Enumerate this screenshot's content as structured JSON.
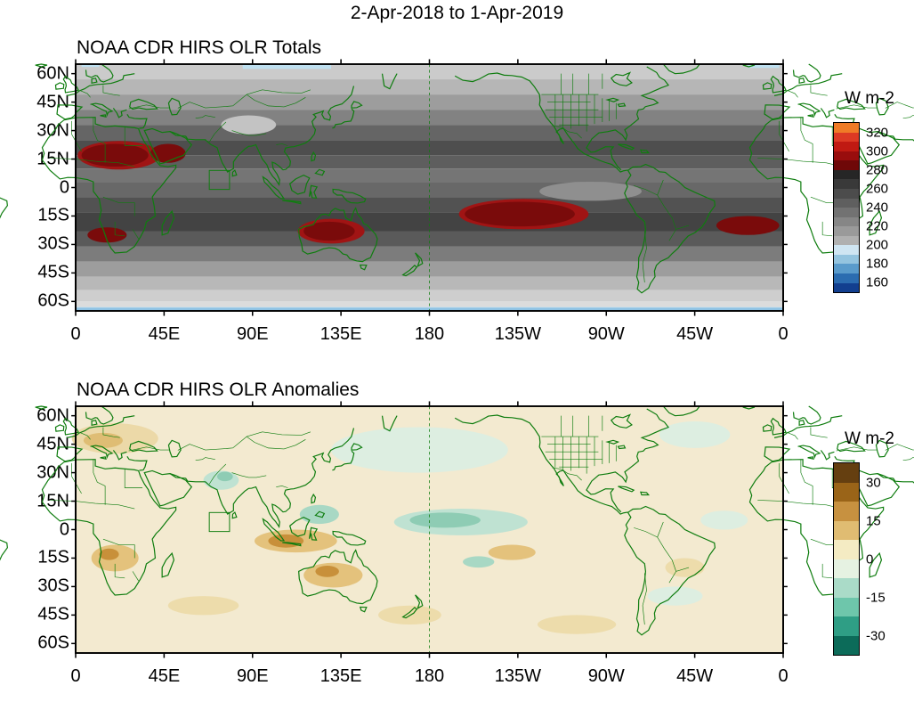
{
  "header": {
    "title": "2-Apr-2018 to 1-Apr-2019"
  },
  "panels": [
    {
      "title": "NOAA CDR HIRS OLR Totals",
      "colorbar": {
        "title": "W m-2",
        "labels": [
          "320",
          "300",
          "280",
          "260",
          "240",
          "220",
          "200",
          "180",
          "160"
        ],
        "segments": [
          "#ef7b27",
          "#dc3a24",
          "#c01a12",
          "#990d0d",
          "#6f0808",
          "#262626",
          "#393939",
          "#4c4c4c",
          "#5f5f5f",
          "#727272",
          "#868686",
          "#9a9a9a",
          "#b0b0b0",
          "#cfe5f2",
          "#94c4df",
          "#5a9bcb",
          "#2b6cb0",
          "#123f8f"
        ]
      }
    },
    {
      "title": "NOAA CDR HIRS OLR Anomalies",
      "colorbar": {
        "title": "W m-2",
        "labels": [
          "30",
          "15",
          "0",
          "-15",
          "-30"
        ],
        "segments": [
          "#653f10",
          "#9a6418",
          "#c79140",
          "#e0bc72",
          "#f4ebc3",
          "#e6f2e2",
          "#aadbc8",
          "#6ec6ab",
          "#2f9e85",
          "#0c6b59"
        ]
      }
    }
  ],
  "axes": {
    "lat": [
      {
        "label": "60N",
        "deg": 60
      },
      {
        "label": "45N",
        "deg": 45
      },
      {
        "label": "30N",
        "deg": 30
      },
      {
        "label": "15N",
        "deg": 15
      },
      {
        "label": "0",
        "deg": 0
      },
      {
        "label": "15S",
        "deg": -15
      },
      {
        "label": "30S",
        "deg": -30
      },
      {
        "label": "45S",
        "deg": -45
      },
      {
        "label": "60S",
        "deg": -60
      }
    ],
    "lon": [
      {
        "label": "0",
        "deg": 0
      },
      {
        "label": "45E",
        "deg": 45
      },
      {
        "label": "90E",
        "deg": 90
      },
      {
        "label": "135E",
        "deg": 135
      },
      {
        "label": "180",
        "deg": 180
      },
      {
        "label": "135W",
        "deg": 225
      },
      {
        "label": "90W",
        "deg": 270
      },
      {
        "label": "45W",
        "deg": 315
      },
      {
        "label": "0",
        "deg": 360
      }
    ]
  },
  "map_style": {
    "coast_color": "#0f7d0f",
    "frame_color": "#000000"
  },
  "chart_data": [
    {
      "type": "heatmap",
      "subtype": "filled_contour_map",
      "title": "NOAA CDR HIRS OLR Totals",
      "units": "W m-2",
      "period": "2-Apr-2018 to 1-Apr-2019",
      "lon_range_deg": [
        0,
        360
      ],
      "lat_range_deg": [
        -65,
        65
      ],
      "contour_levels": [
        160,
        180,
        200,
        220,
        240,
        260,
        280,
        300,
        320
      ],
      "dateline_lon": 180,
      "region_box": {
        "lon0": 68,
        "lat0": 9,
        "lon1": 78.3,
        "lat1": -1
      },
      "zonal_bands": [
        {
          "lat0": 65,
          "lat1": 57,
          "color": "#cbcbcb"
        },
        {
          "lat0": 57,
          "lat1": 49,
          "color": "#b6b6b6"
        },
        {
          "lat0": 49,
          "lat1": 41,
          "color": "#9d9d9d"
        },
        {
          "lat0": 41,
          "lat1": 33,
          "color": "#828282"
        },
        {
          "lat0": 33,
          "lat1": 25,
          "color": "#656565"
        },
        {
          "lat0": 25,
          "lat1": 17,
          "color": "#4e4e4e"
        },
        {
          "lat0": 17,
          "lat1": 10,
          "color": "#5e5e5e"
        },
        {
          "lat0": 10,
          "lat1": 3,
          "color": "#757575"
        },
        {
          "lat0": 3,
          "lat1": -5,
          "color": "#686868"
        },
        {
          "lat0": -5,
          "lat1": -13,
          "color": "#525252"
        },
        {
          "lat0": -13,
          "lat1": -23,
          "color": "#434343"
        },
        {
          "lat0": -23,
          "lat1": -31,
          "color": "#5a5a5a"
        },
        {
          "lat0": -31,
          "lat1": -39,
          "color": "#7c7c7c"
        },
        {
          "lat0": -39,
          "lat1": -47,
          "color": "#9d9d9d"
        },
        {
          "lat0": -47,
          "lat1": -54,
          "color": "#b8b8b8"
        },
        {
          "lat0": -54,
          "lat1": -60,
          "color": "#cecece"
        },
        {
          "lat0": -60,
          "lat1": -63,
          "color": "#dcdcdc"
        },
        {
          "lat0": -63,
          "lat1": -65,
          "color": "#a9d2ea"
        }
      ],
      "regions": [
        {
          "name": "tibet-low-olr",
          "shape": "ellipse",
          "lon": 88,
          "lat": 33,
          "rx": 14,
          "ry": 5,
          "color": "#c3c3c3"
        },
        {
          "name": "east-pacific-light",
          "shape": "ellipse",
          "lon": 262,
          "lat": -2,
          "rx": 26,
          "ry": 5,
          "color": "#8f8f8f"
        },
        {
          "name": "n-africa-high-rim",
          "shape": "ellipse",
          "lon": 22,
          "lat": 17,
          "rx": 21,
          "ry": 7.5,
          "color": "#a01414"
        },
        {
          "name": "n-africa-high",
          "shape": "ellipse",
          "lon": 20,
          "lat": 17,
          "rx": 17,
          "ry": 6,
          "color": "#7a0b0b"
        },
        {
          "name": "arabia-high",
          "shape": "ellipse",
          "lon": 47,
          "lat": 18,
          "rx": 9,
          "ry": 5,
          "color": "#7a0b0b"
        },
        {
          "name": "s-africa-high",
          "shape": "ellipse",
          "lon": 16,
          "lat": -25,
          "rx": 10,
          "ry": 4,
          "color": "#7a0b0b"
        },
        {
          "name": "australia-high-rim",
          "shape": "ellipse",
          "lon": 130,
          "lat": -23,
          "rx": 17,
          "ry": 6.5,
          "color": "#a01414"
        },
        {
          "name": "australia-high",
          "shape": "ellipse",
          "lon": 129,
          "lat": -23,
          "rx": 13,
          "ry": 5,
          "color": "#7a0b0b"
        },
        {
          "name": "s-pacific-high-rim",
          "shape": "ellipse",
          "lon": 228,
          "lat": -14,
          "rx": 33,
          "ry": 8,
          "color": "#a01414"
        },
        {
          "name": "s-pacific-high",
          "shape": "ellipse",
          "lon": 226,
          "lat": -14,
          "rx": 28,
          "ry": 6.5,
          "color": "#7a0b0b"
        },
        {
          "name": "s-atlantic-high",
          "shape": "ellipse",
          "lon": 342,
          "lat": -20,
          "rx": 16,
          "ry": 5,
          "color": "#7a0b0b"
        },
        {
          "name": "siberia-cold",
          "shape": "rect",
          "lon0": 85,
          "lat0": 65,
          "lon1": 130,
          "lat1": 62.5,
          "color": "#bfe0f0"
        },
        {
          "name": "nw-europe-cold",
          "shape": "rect",
          "lon0": 3,
          "lat0": 65,
          "lon1": 12,
          "lat1": 63.5,
          "color": "#bfe0f0"
        },
        {
          "name": "nw-atlantic-cold",
          "shape": "rect",
          "lon0": 342,
          "lat0": 65,
          "lon1": 358,
          "lat1": 63,
          "color": "#bfe0f0"
        },
        {
          "name": "antarctic-cold",
          "shape": "rect",
          "lon0": 0,
          "lat0": -63.5,
          "lon1": 360,
          "lat1": -65,
          "color": "#8fc3e4"
        }
      ]
    },
    {
      "type": "heatmap",
      "subtype": "filled_contour_anomaly_map",
      "title": "NOAA CDR HIRS OLR Anomalies",
      "units": "W m-2",
      "period": "2-Apr-2018 to 1-Apr-2019",
      "lon_range_deg": [
        0,
        360
      ],
      "lat_range_deg": [
        -65,
        65
      ],
      "contour_levels": [
        -30,
        -15,
        0,
        15,
        30
      ],
      "dateline_lon": 180,
      "background": "#f3ead0",
      "region_box": {
        "lon0": 68,
        "lat0": 9,
        "lon1": 78.3,
        "lat1": -1
      },
      "regions": [
        {
          "name": "n-pacific-neg",
          "shape": "ellipse",
          "lon": 175,
          "lat": 42,
          "rx": 45,
          "ry": 12,
          "color": "#ddeee1"
        },
        {
          "name": "n-atlantic-neg",
          "shape": "ellipse",
          "lon": 315,
          "lat": 50,
          "rx": 18,
          "ry": 7,
          "color": "#ddeee1"
        },
        {
          "name": "europe-pos",
          "shape": "ellipse",
          "lon": 20,
          "lat": 48,
          "rx": 22,
          "ry": 8,
          "color": "#ecd9a8"
        },
        {
          "name": "europe-pos-core",
          "shape": "ellipse",
          "lon": 14,
          "lat": 47,
          "rx": 10,
          "ry": 4,
          "color": "#dfbd74"
        },
        {
          "name": "nw-india-neg",
          "shape": "ellipse",
          "lon": 74,
          "lat": 26,
          "rx": 9,
          "ry": 5,
          "color": "#bfe2d2"
        },
        {
          "name": "nw-india-neg-core",
          "shape": "ellipse",
          "lon": 76,
          "lat": 28,
          "rx": 4,
          "ry": 2.5,
          "color": "#8eccb4"
        },
        {
          "name": "cent-pacific-neg",
          "shape": "ellipse",
          "lon": 196,
          "lat": 4,
          "rx": 34,
          "ry": 7,
          "color": "#bfe2d2"
        },
        {
          "name": "cent-pacific-neg-core",
          "shape": "ellipse",
          "lon": 188,
          "lat": 5,
          "rx": 18,
          "ry": 4,
          "color": "#8eccb4"
        },
        {
          "name": "philippines-neg",
          "shape": "ellipse",
          "lon": 124,
          "lat": 8,
          "rx": 10,
          "ry": 5,
          "color": "#a8d8c4"
        },
        {
          "name": "maritime-pos",
          "shape": "ellipse",
          "lon": 112,
          "lat": -6,
          "rx": 21,
          "ry": 6,
          "color": "#e4c27c"
        },
        {
          "name": "maritime-pos-core",
          "shape": "ellipse",
          "lon": 107,
          "lat": -6,
          "rx": 9,
          "ry": 3.5,
          "color": "#c8903a"
        },
        {
          "name": "australia-pos",
          "shape": "ellipse",
          "lon": 131,
          "lat": -24,
          "rx": 15,
          "ry": 6.5,
          "color": "#e4c27c"
        },
        {
          "name": "australia-pos-core",
          "shape": "ellipse",
          "lon": 128,
          "lat": -22,
          "rx": 6,
          "ry": 3,
          "color": "#c8903a"
        },
        {
          "name": "s-africa-pos",
          "shape": "ellipse",
          "lon": 20,
          "lat": -15,
          "rx": 12,
          "ry": 7,
          "color": "#e4c27c"
        },
        {
          "name": "s-africa-pos-core",
          "shape": "ellipse",
          "lon": 17,
          "lat": -13,
          "rx": 5,
          "ry": 3,
          "color": "#c8903a"
        },
        {
          "name": "sw-pacific-pos",
          "shape": "ellipse",
          "lon": 222,
          "lat": -12,
          "rx": 12,
          "ry": 4,
          "color": "#e4c27c"
        },
        {
          "name": "s-pacific-neg",
          "shape": "ellipse",
          "lon": 205,
          "lat": -17,
          "rx": 8,
          "ry": 3,
          "color": "#a8d8c4"
        },
        {
          "name": "s-midlat-pos-1",
          "shape": "ellipse",
          "lon": 65,
          "lat": -40,
          "rx": 18,
          "ry": 5,
          "color": "#eddcab"
        },
        {
          "name": "s-midlat-pos-2",
          "shape": "ellipse",
          "lon": 170,
          "lat": -45,
          "rx": 16,
          "ry": 5,
          "color": "#eddcab"
        },
        {
          "name": "s-midlat-pos-3",
          "shape": "ellipse",
          "lon": 255,
          "lat": -50,
          "rx": 20,
          "ry": 5,
          "color": "#eddcab"
        },
        {
          "name": "s-america-pos",
          "shape": "ellipse",
          "lon": 310,
          "lat": -20,
          "rx": 10,
          "ry": 5,
          "color": "#eddcab"
        },
        {
          "name": "s-midlat-neg",
          "shape": "ellipse",
          "lon": 305,
          "lat": -35,
          "rx": 14,
          "ry": 5,
          "color": "#ddeee1"
        },
        {
          "name": "atlantic-neg",
          "shape": "ellipse",
          "lon": 330,
          "lat": 5,
          "rx": 12,
          "ry": 5,
          "color": "#ddeee1"
        }
      ]
    }
  ]
}
